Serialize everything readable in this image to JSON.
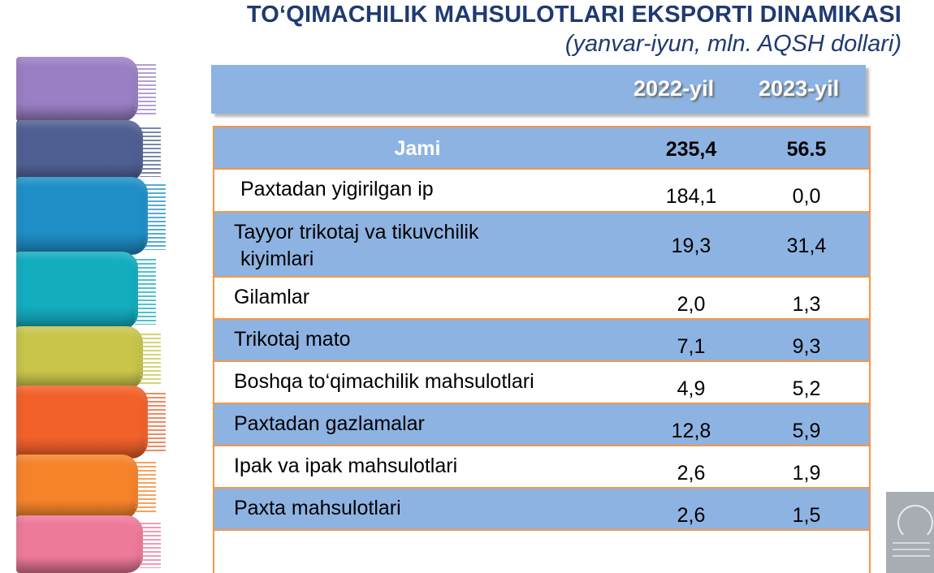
{
  "title": "TO‘QIMACHILIK MAHSULOTLARI EKSPORTI DINAMIKASI",
  "subtitle": "(yanvar-iyun, mln. AQSH dollari)",
  "header": {
    "col1": "2022-yil",
    "col2": "2023-yil"
  },
  "total": {
    "label": "Jami",
    "v2022": "235,4",
    "v2023": "56.5"
  },
  "rows": [
    {
      "label_lines": [
        "Paxtadan yigirilgan ip"
      ],
      "v2022": "184,1",
      "v2023": "0,0"
    },
    {
      "label_lines": [
        "Tayyor trikotaj va tikuvchilik",
        "kiyimlari"
      ],
      "v2022": "19,3",
      "v2023": "31,4"
    },
    {
      "label_lines": [
        "Gilamlar"
      ],
      "v2022": "2,0",
      "v2023": "1,3"
    },
    {
      "label_lines": [
        "Trikotaj mato"
      ],
      "v2022": "7,1",
      "v2023": "9,3"
    },
    {
      "label_lines": [
        "Boshqa to‘qimachilik mahsulotlari"
      ],
      "v2022": "4,9",
      "v2023": "5,2"
    },
    {
      "label_lines": [
        "Paxtadan gazlamalar"
      ],
      "v2022": "12,8",
      "v2023": "5,9"
    },
    {
      "label_lines": [
        "Ipak va ipak mahsulotlari"
      ],
      "v2022": "2,6",
      "v2023": "1,9"
    },
    {
      "label_lines": [
        "Paxta mahsulotlari"
      ],
      "v2022": "2,6",
      "v2023": "1,5"
    }
  ],
  "colors": {
    "title": "#1f3a72",
    "header_bg": "#8db3e2",
    "row_border": "#f79646",
    "fabrics": [
      "#9b7fc4",
      "#4f5f92",
      "#1f8fc7",
      "#13adc0",
      "#c9c44a",
      "#f2612a",
      "#f5832a",
      "#ee7a9a"
    ]
  }
}
